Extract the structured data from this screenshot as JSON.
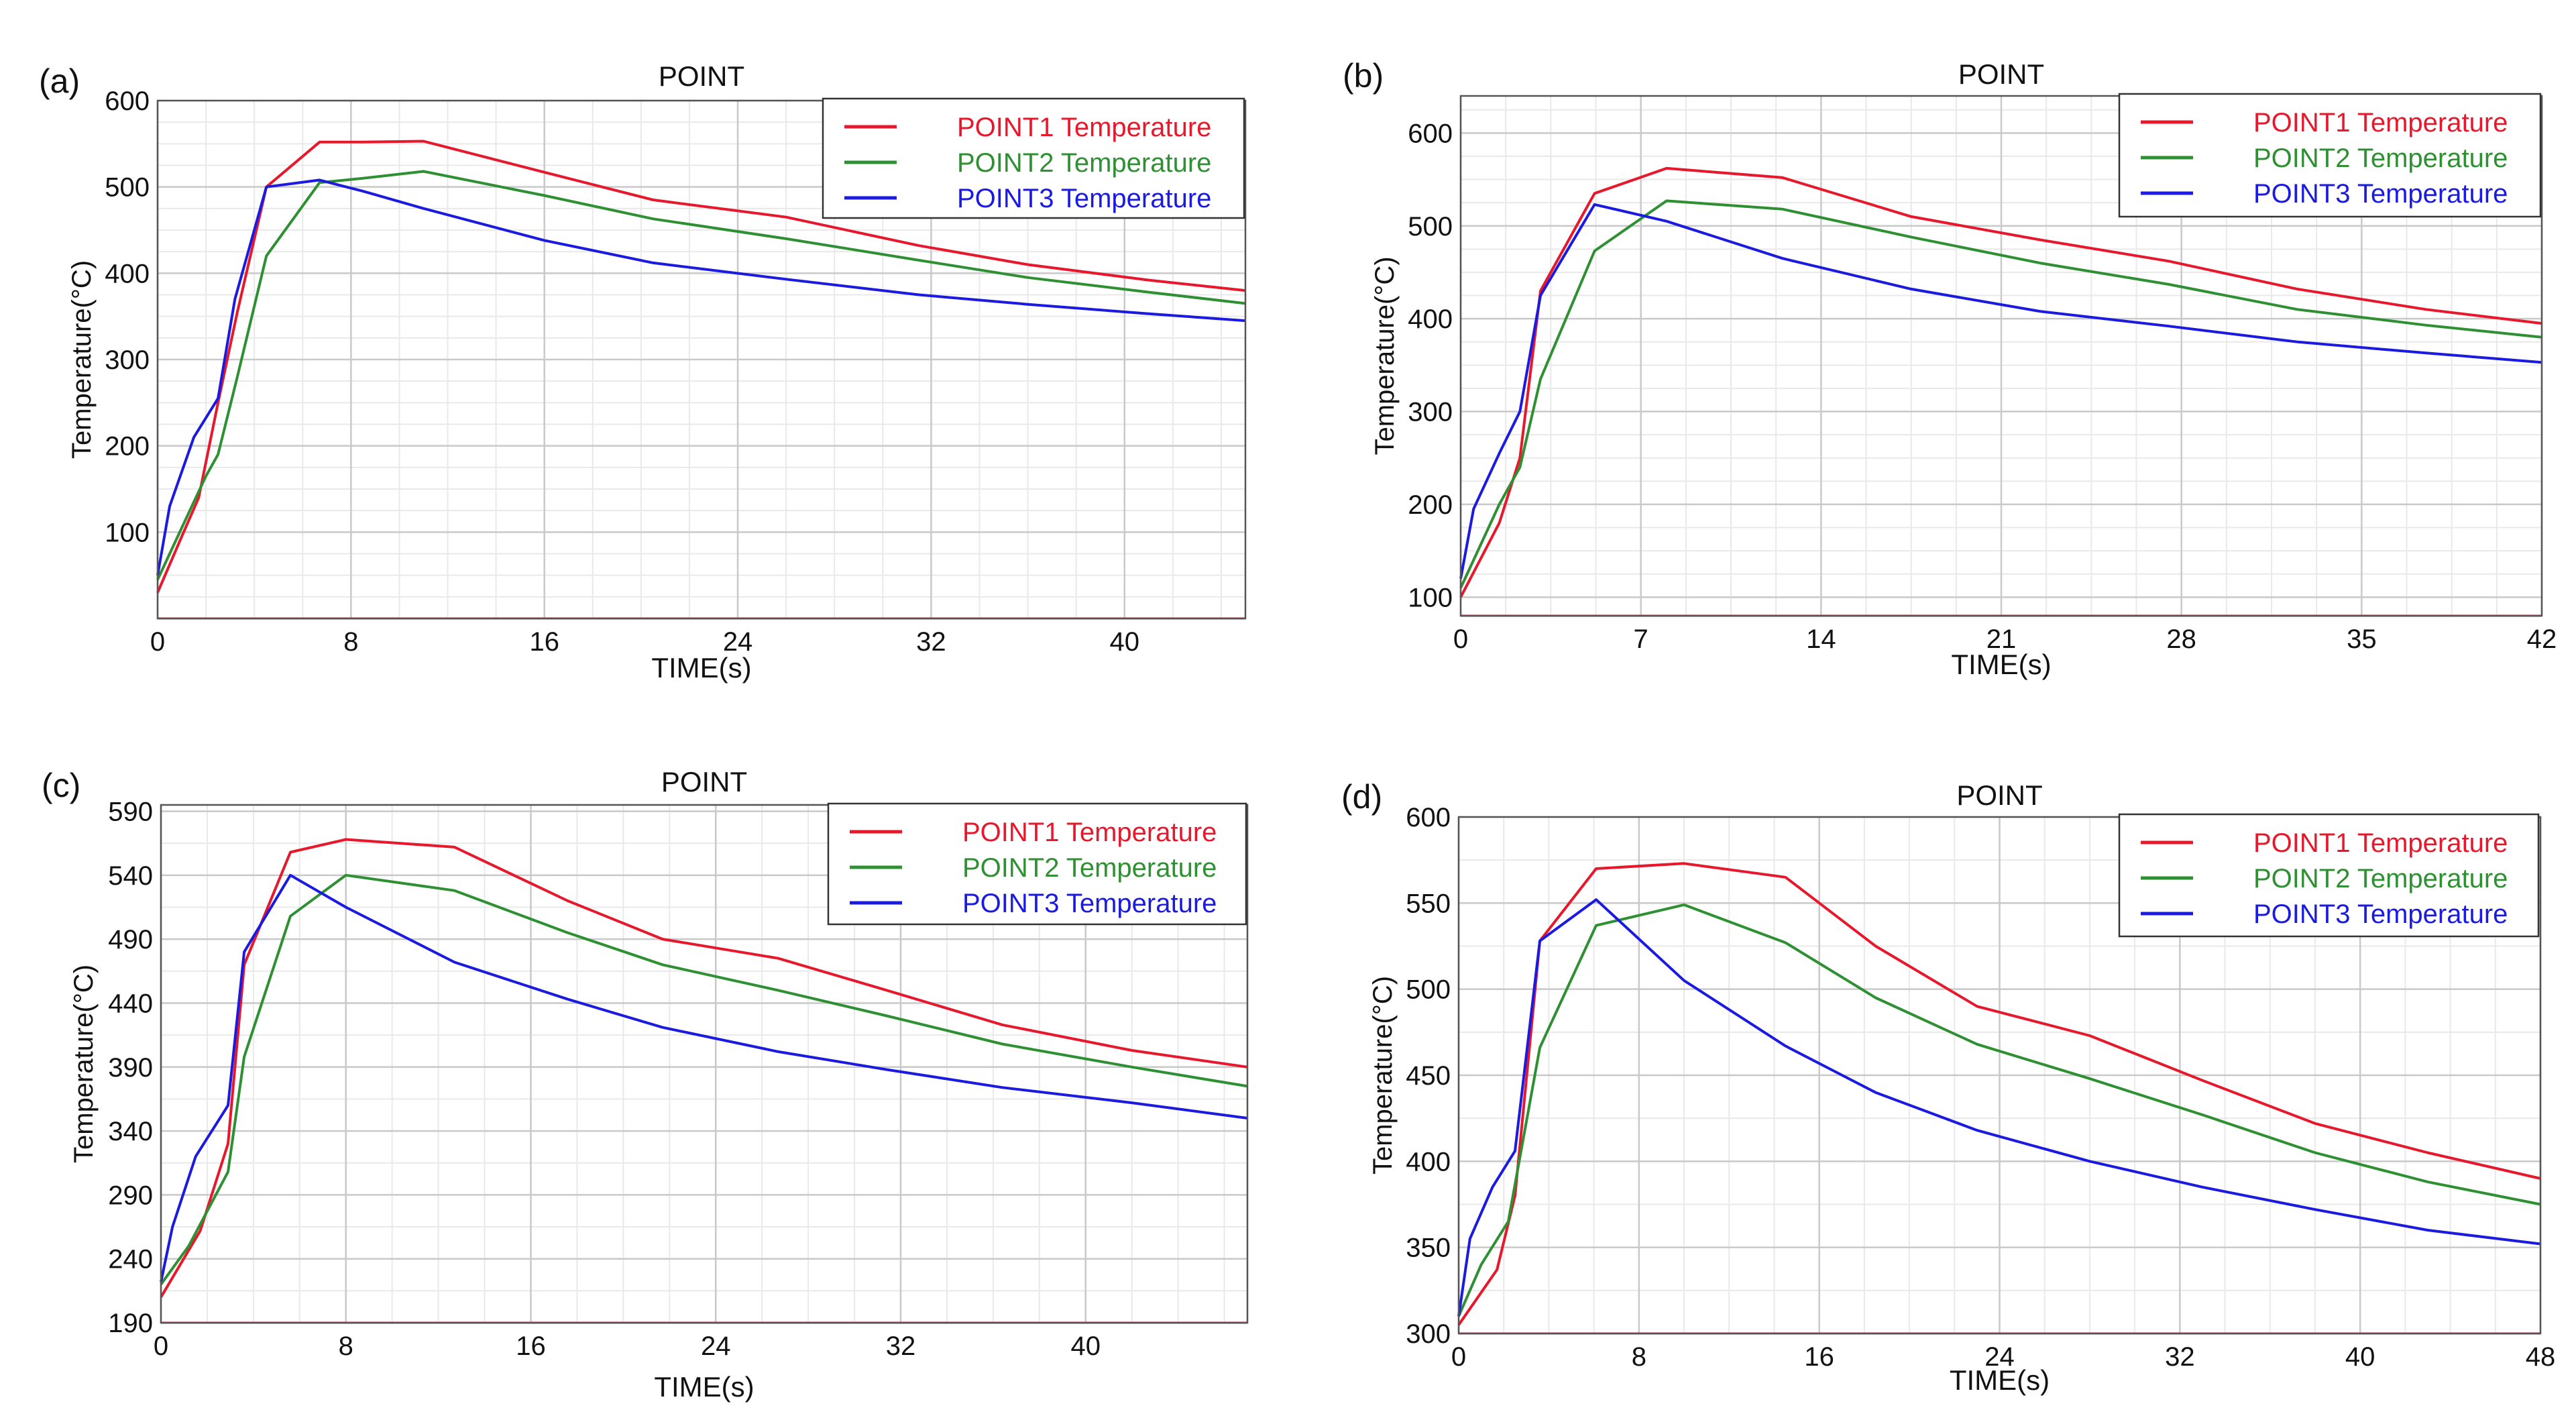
{
  "chart_data": [
    {
      "panel_label": "(a)",
      "type": "line",
      "title": "POINT",
      "xlabel": "TIME(s)",
      "ylabel": "Temperature(°C)",
      "xlim": [
        0,
        45
      ],
      "ylim": [
        0,
        600
      ],
      "xticks": [
        0,
        8,
        16,
        24,
        32,
        40
      ],
      "yticks": [
        100,
        200,
        300,
        400,
        500,
        600
      ],
      "legend_position": "top-right",
      "series": [
        {
          "name": "POINT1 Temperature",
          "color": "#e8182c",
          "x": [
            0,
            1,
            1.7,
            2.5,
            3.3,
            4.5,
            6.7,
            8.5,
            11,
            16,
            20.5,
            26,
            31.5,
            36,
            41,
            45
          ],
          "y": [
            30,
            95,
            140,
            250,
            355,
            500,
            552,
            552,
            553,
            517,
            485,
            465,
            432,
            410,
            392,
            380
          ]
        },
        {
          "name": "POINT2 Temperature",
          "color": "#2e9032",
          "x": [
            0,
            1,
            2,
            2.5,
            3.3,
            4.5,
            6.7,
            8.5,
            11,
            16,
            20.5,
            26,
            31.5,
            36,
            41,
            45
          ],
          "y": [
            45,
            105,
            165,
            190,
            280,
            420,
            505,
            510,
            518,
            490,
            463,
            440,
            415,
            395,
            378,
            365
          ]
        },
        {
          "name": "POINT3 Temperature",
          "color": "#1a1ae0",
          "x": [
            0,
            0.5,
            1.5,
            2.5,
            3.2,
            4.5,
            6.7,
            8.5,
            11,
            16,
            20.5,
            26,
            31.5,
            36,
            41,
            45
          ],
          "y": [
            50,
            130,
            210,
            255,
            370,
            500,
            508,
            495,
            475,
            438,
            412,
            393,
            375,
            364,
            353,
            345
          ]
        }
      ]
    },
    {
      "panel_label": "(b)",
      "type": "line",
      "title": "POINT",
      "xlabel": "TIME(s)",
      "ylabel": "Temperature(°C)",
      "xlim": [
        0,
        42
      ],
      "ylim": [
        80,
        640
      ],
      "xticks": [
        0,
        7,
        14,
        21,
        28,
        35,
        42
      ],
      "yticks": [
        100,
        200,
        300,
        400,
        500,
        600
      ],
      "legend_position": "top-right",
      "series": [
        {
          "name": "POINT1 Temperature",
          "color": "#e8182c",
          "x": [
            0,
            1.5,
            2.3,
            3.1,
            5.2,
            8,
            12.5,
            17.5,
            22.5,
            27.5,
            32.5,
            37.5,
            42
          ],
          "y": [
            100,
            180,
            250,
            430,
            535,
            562,
            552,
            510,
            485,
            462,
            432,
            410,
            395
          ]
        },
        {
          "name": "POINT2 Temperature",
          "color": "#2e9032",
          "x": [
            0,
            1.5,
            2.3,
            3.1,
            5.2,
            8,
            12.5,
            17.5,
            22.5,
            27.5,
            32.5,
            37.5,
            42
          ],
          "y": [
            110,
            200,
            240,
            335,
            473,
            527,
            518,
            488,
            460,
            437,
            410,
            393,
            380
          ]
        },
        {
          "name": "POINT3 Temperature",
          "color": "#1a1ae0",
          "x": [
            0,
            0.5,
            1.5,
            2.3,
            3.1,
            5.2,
            8,
            12.5,
            17.5,
            22.5,
            27.5,
            32.5,
            37.5,
            42
          ],
          "y": [
            120,
            195,
            255,
            300,
            425,
            523,
            505,
            465,
            432,
            408,
            392,
            375,
            363,
            353
          ]
        }
      ]
    },
    {
      "panel_label": "(c)",
      "type": "line",
      "title": "POINT",
      "xlabel": "TIME(s)",
      "ylabel": "Temperature(°C)",
      "xlim": [
        0,
        47
      ],
      "ylim": [
        190,
        595
      ],
      "xticks": [
        0,
        8,
        16,
        24,
        32,
        40
      ],
      "yticks": [
        190,
        240,
        290,
        340,
        390,
        440,
        490,
        540,
        590
      ],
      "legend_position": "top-right",
      "series": [
        {
          "name": "POINT1 Temperature",
          "color": "#e8182c",
          "x": [
            0,
            1.7,
            2.9,
            3.6,
            5.6,
            8,
            12.7,
            17.6,
            21.7,
            26.7,
            31.4,
            36.4,
            42,
            47
          ],
          "y": [
            210,
            262,
            330,
            470,
            558,
            568,
            562,
            520,
            490,
            475,
            450,
            423,
            403,
            390
          ]
        },
        {
          "name": "POINT2 Temperature",
          "color": "#2e9032",
          "x": [
            0,
            1.2,
            2.9,
            3.6,
            5.6,
            8,
            12.7,
            17.6,
            21.7,
            26.7,
            31.4,
            36.4,
            42,
            47
          ],
          "y": [
            220,
            250,
            308,
            398,
            508,
            540,
            528,
            495,
            470,
            450,
            430,
            408,
            390,
            375
          ]
        },
        {
          "name": "POINT3 Temperature",
          "color": "#1a1ae0",
          "x": [
            0,
            0.5,
            1.5,
            2.9,
            3.6,
            5.6,
            8,
            12.7,
            17.6,
            21.7,
            26.7,
            31.4,
            36.4,
            42,
            47
          ],
          "y": [
            222,
            265,
            320,
            360,
            480,
            540,
            515,
            472,
            443,
            421,
            402,
            388,
            374,
            362,
            350
          ]
        }
      ]
    },
    {
      "panel_label": "(d)",
      "type": "line",
      "title": "POINT",
      "xlabel": "TIME(s)",
      "ylabel": "Temperature(°C)",
      "xlim": [
        0,
        48
      ],
      "ylim": [
        300,
        600
      ],
      "xticks": [
        0,
        8,
        16,
        24,
        32,
        40,
        48
      ],
      "yticks": [
        300,
        350,
        400,
        450,
        500,
        550,
        600
      ],
      "legend_position": "top-right",
      "series": [
        {
          "name": "POINT1 Temperature",
          "color": "#e8182c",
          "x": [
            0,
            1.7,
            2.5,
            3.6,
            6.1,
            10,
            14.5,
            18.5,
            23,
            28,
            33,
            38,
            43,
            48
          ],
          "y": [
            305,
            337,
            380,
            528,
            570,
            573,
            565,
            525,
            490,
            473,
            447,
            422,
            405,
            390
          ]
        },
        {
          "name": "POINT2 Temperature",
          "color": "#2e9032",
          "x": [
            0,
            1,
            2.2,
            3.6,
            6.1,
            10,
            14.5,
            18.5,
            23,
            28,
            33,
            38,
            43,
            48
          ],
          "y": [
            310,
            340,
            365,
            466,
            537,
            549,
            527,
            495,
            468,
            448,
            427,
            405,
            388,
            375
          ]
        },
        {
          "name": "POINT3 Temperature",
          "color": "#1a1ae0",
          "x": [
            0,
            0.5,
            1.5,
            2.5,
            3.6,
            6.1,
            10,
            14.5,
            18.5,
            23,
            28,
            33,
            38,
            43,
            48
          ],
          "y": [
            310,
            355,
            385,
            406,
            528,
            552,
            505,
            467,
            440,
            418,
            400,
            385,
            372,
            360,
            352
          ]
        }
      ]
    }
  ]
}
